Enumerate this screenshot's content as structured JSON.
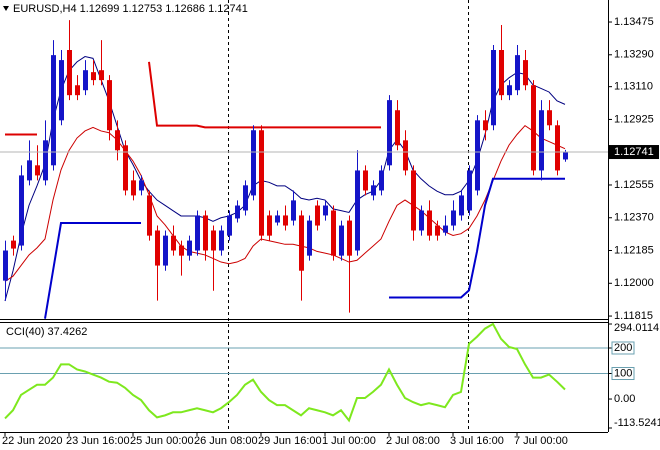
{
  "chart_data": {
    "type": "candlestick",
    "title": "EURUSD,H4 1.12699 1.12753 1.12686 1.12741",
    "categories": [
      "22 Jun 2020",
      null,
      null,
      null,
      null,
      null,
      null,
      null,
      "23 Jun 16:00",
      null,
      null,
      null,
      null,
      null,
      null,
      null,
      "25 Jun 00:00",
      null,
      null,
      null,
      null,
      null,
      null,
      null,
      "26 Jun 08:00",
      null,
      null,
      null,
      null,
      null,
      null,
      null,
      "29 Jun 16:00",
      null,
      null,
      null,
      null,
      null,
      null,
      null,
      "1 Jul 00:00",
      null,
      null,
      null,
      null,
      null,
      null,
      null,
      "2 Jul 08:00",
      null,
      null,
      null,
      null,
      null,
      null,
      null,
      "3 Jul 16:00",
      null,
      null,
      null,
      null,
      null,
      null,
      null,
      "7 Jul 00:00",
      null,
      null,
      null,
      null,
      null,
      null
    ],
    "open": [
      1.12015,
      1.12241,
      1.12213,
      1.12581,
      1.12666,
      1.12581,
      1.12666,
      1.1292,
      1.13317,
      1.13118,
      1.1309,
      1.13192,
      1.13203,
      1.13147,
      1.12864,
      1.12779,
      1.12581,
      1.12524,
      1.12496,
      1.12298,
      1.121,
      1.12269,
      1.12213,
      1.12156,
      1.12185,
      1.12383,
      1.12298,
      1.12185,
      1.12269,
      1.12366,
      1.12411,
      1.12496,
      1.12864,
      1.12383,
      1.12343,
      1.12383,
      1.12354,
      1.12383,
      1.12156,
      1.12439,
      1.12383,
      1.12411,
      1.12156,
      1.12354,
      1.12185,
      1.12637,
      1.12496,
      1.12524,
      1.12666,
      1.12977,
      1.12807,
      1.12637,
      1.12298,
      1.12411,
      1.12326,
      1.12286,
      1.12326,
      1.12383,
      1.12411,
      1.12524,
      1.1292,
      1.12892,
      1.13317,
      1.13062,
      1.1309,
      1.1326,
      1.13118,
      1.12637,
      1.12977,
      1.12892,
      1.12699
    ],
    "high": [
      1.12241,
      1.12269,
      1.12666,
      1.12807,
      1.12779,
      1.1292,
      1.13373,
      1.13317,
      1.13486,
      1.13175,
      1.1326,
      1.1326,
      1.13373,
      1.13175,
      1.1292,
      1.12807,
      1.12637,
      1.12609,
      1.12524,
      1.12326,
      1.12298,
      1.12326,
      1.12241,
      1.12269,
      1.12411,
      1.12411,
      1.12326,
      1.12326,
      1.12411,
      1.12468,
      1.12581,
      1.12892,
      1.12892,
      1.12411,
      1.12411,
      1.12439,
      1.12524,
      1.12411,
      1.12383,
      1.12468,
      1.12468,
      1.12439,
      1.12354,
      1.12383,
      1.12751,
      1.12666,
      1.12581,
      1.12666,
      1.13062,
      1.13034,
      1.12864,
      1.12666,
      1.12439,
      1.12468,
      1.12354,
      1.12383,
      1.12468,
      1.12524,
      1.12666,
      1.12949,
      1.12977,
      1.13345,
      1.13458,
      1.13147,
      1.13345,
      1.13317,
      1.13147,
      1.13034,
      1.13034,
      1.1292,
      1.12753
    ],
    "low": [
      1.11902,
      1.12156,
      1.12185,
      1.12553,
      1.12581,
      1.12553,
      1.12637,
      1.12892,
      1.13034,
      1.13034,
      1.13062,
      1.13118,
      1.13118,
      1.12807,
      1.12694,
      1.12496,
      1.12468,
      1.12496,
      1.12241,
      1.11902,
      1.12071,
      1.12156,
      1.12043,
      1.12128,
      1.12156,
      1.12128,
      1.11958,
      1.12156,
      1.12241,
      1.12343,
      1.12383,
      1.12468,
      1.12241,
      1.12241,
      1.12326,
      1.12298,
      1.12326,
      1.11902,
      1.12128,
      1.12298,
      1.12354,
      1.12128,
      1.12128,
      1.11834,
      1.12156,
      1.12496,
      1.12468,
      1.12496,
      1.12637,
      1.12751,
      1.12609,
      1.12241,
      1.12269,
      1.12241,
      1.12241,
      1.12269,
      1.12298,
      1.12354,
      1.12383,
      1.12496,
      1.12807,
      1.12864,
      1.13034,
      1.13034,
      1.13062,
      1.1309,
      1.12609,
      1.12581,
      1.12864,
      1.12609,
      1.12686
    ],
    "close": [
      1.12185,
      1.12196,
      1.12609,
      1.12694,
      1.12609,
      1.12807,
      1.13288,
      1.1326,
      1.13062,
      1.13062,
      1.13203,
      1.13147,
      1.13147,
      1.12864,
      1.12751,
      1.12524,
      1.12496,
      1.12581,
      1.12269,
      1.121,
      1.12269,
      1.12185,
      1.12156,
      1.12241,
      1.12383,
      1.12185,
      1.12185,
      1.12298,
      1.12383,
      1.12439,
      1.12553,
      1.12864,
      1.12269,
      1.12269,
      1.12383,
      1.12326,
      1.12468,
      1.12071,
      1.12354,
      1.12326,
      1.12439,
      1.12156,
      1.12326,
      1.12156,
      1.12637,
      1.12524,
      1.12553,
      1.12637,
      1.13034,
      1.12779,
      1.12637,
      1.12298,
      1.12411,
      1.12269,
      1.12269,
      1.12326,
      1.12411,
      1.12496,
      1.12637,
      1.1292,
      1.12864,
      1.13317,
      1.13062,
      1.13118,
      1.13288,
      1.13118,
      1.12637,
      1.12977,
      1.12892,
      1.12637,
      1.12741
    ],
    "up_color": "#1414c8",
    "down_color": "#e00000",
    "series": [
      {
        "color": "#000080",
        "values": [
          1.119,
          1.1207,
          1.1227,
          1.1244,
          1.1255,
          1.1267,
          1.1292,
          1.1309,
          1.132,
          1.1325,
          1.1328,
          1.1327,
          1.1315,
          1.1303,
          1.1289,
          1.1275,
          1.1267,
          1.1258,
          1.1252,
          1.1247,
          1.1244,
          1.1241,
          1.1238,
          1.1238,
          1.1238,
          1.1237,
          1.1235,
          1.1237,
          1.1238,
          1.124,
          1.1244,
          1.1255,
          1.1258,
          1.1257,
          1.1255,
          1.1255,
          1.1252,
          1.1248,
          1.1247,
          1.1248,
          1.1247,
          1.1242,
          1.1241,
          1.124,
          1.1247,
          1.125,
          1.1252,
          1.1258,
          1.1275,
          1.1281,
          1.1275,
          1.1264,
          1.1259,
          1.1255,
          1.1252,
          1.125,
          1.125,
          1.1252,
          1.1258,
          1.1269,
          1.1284,
          1.1303,
          1.1312,
          1.1316,
          1.1319,
          1.1318,
          1.1312,
          1.131,
          1.1308,
          1.1303,
          1.1301
        ]
      },
      {
        "color": "#cc0000",
        "values": [
          1.1201,
          1.1204,
          1.121,
          1.1216,
          1.122,
          1.1225,
          1.1247,
          1.1264,
          1.1275,
          1.1282,
          1.1286,
          1.1288,
          1.1286,
          1.1285,
          1.1281,
          1.1275,
          1.1269,
          1.1261,
          1.125,
          1.1238,
          1.1233,
          1.1227,
          1.1221,
          1.1218,
          1.1217,
          1.1216,
          1.1214,
          1.1212,
          1.1211,
          1.1212,
          1.1214,
          1.1221,
          1.1225,
          1.1224,
          1.1223,
          1.1222,
          1.1222,
          1.1221,
          1.122,
          1.1218,
          1.1217,
          1.1216,
          1.1214,
          1.1212,
          1.1213,
          1.1217,
          1.1221,
          1.1225,
          1.1235,
          1.1244,
          1.1247,
          1.1244,
          1.1241,
          1.1237,
          1.1233,
          1.1229,
          1.1227,
          1.1228,
          1.1231,
          1.1238,
          1.1247,
          1.1258,
          1.1269,
          1.1278,
          1.1284,
          1.1289,
          1.1286,
          1.1282,
          1.128,
          1.1278,
          1.1276
        ]
      },
      {
        "color": "#dd0000",
        "values": [
          1.1284,
          1.1284,
          1.1284,
          1.1284,
          1.1284,
          null,
          null,
          null,
          null,
          null,
          null,
          null,
          null,
          null,
          null,
          null,
          null,
          null,
          1.1325,
          1.1289,
          1.1289,
          1.1289,
          1.1289,
          1.1289,
          1.1289,
          1.1288,
          1.1288,
          1.1288,
          1.1288,
          1.1288,
          1.1288,
          1.1288,
          1.1288,
          1.1288,
          1.1288,
          1.1288,
          1.1288,
          1.1288,
          1.1288,
          1.1288,
          1.1288,
          1.1288,
          1.1288,
          1.1288,
          1.1288,
          1.1288,
          1.1288,
          1.1288,
          null,
          null,
          null,
          null,
          null,
          null,
          null,
          null,
          null,
          null,
          null,
          null,
          null,
          null,
          null,
          null,
          null,
          null,
          null,
          null,
          null,
          null,
          null
        ]
      },
      {
        "color": "#0000cc",
        "values": [
          null,
          null,
          null,
          null,
          null,
          1.118,
          1.1207,
          1.1234,
          1.1234,
          1.1234,
          1.1234,
          1.1234,
          1.1234,
          1.1234,
          1.1234,
          1.1234,
          1.1234,
          1.1234,
          null,
          null,
          null,
          null,
          null,
          null,
          null,
          null,
          null,
          null,
          null,
          null,
          null,
          null,
          null,
          null,
          null,
          null,
          null,
          null,
          null,
          null,
          null,
          null,
          null,
          null,
          null,
          null,
          null,
          null,
          1.1192,
          1.1192,
          1.1192,
          1.1192,
          1.1192,
          1.1192,
          1.1192,
          1.1192,
          1.1192,
          1.1192,
          1.1196,
          1.1218,
          1.1244,
          1.1259,
          1.1259,
          1.1259,
          1.1259,
          1.1259,
          1.1259,
          1.1259,
          1.1259,
          1.1259,
          1.1259
        ]
      }
    ],
    "ylim": [
      1.11804,
      1.13588
    ],
    "yticks": [
      1.13475,
      {
        "value": 1.1329,
        "label": "1.13290"
      },
      {
        "value": 1.1311,
        "label": "1.13110"
      },
      1.12925,
      1.12555,
      {
        "value": 1.1237,
        "label": "1.12370"
      },
      1.12185,
      {
        "value": 1.12,
        "label": "1.12000"
      },
      1.11815
    ],
    "cci": {
      "type": "line",
      "label": "CCI(40) 37.4262",
      "color": "#7ee81e",
      "level_color": "#6aa0b0",
      "values": [
        -76,
        -44,
        16,
        36,
        56,
        56,
        84,
        136,
        136,
        116,
        108,
        96,
        84,
        68,
        64,
        44,
        16,
        -4,
        -44,
        -72,
        -64,
        -52,
        -52,
        -44,
        -36,
        -44,
        -52,
        -36,
        -12,
        16,
        56,
        76,
        28,
        -4,
        -24,
        -24,
        -44,
        -64,
        -36,
        -44,
        -52,
        -64,
        -44,
        -84,
        4,
        4,
        28,
        56,
        116,
        56,
        4,
        -12,
        -24,
        -16,
        -24,
        -32,
        16,
        28,
        216,
        244,
        276,
        294.0114,
        236,
        204,
        196,
        136,
        84,
        84,
        96,
        68,
        37.4262
      ],
      "ylim": [
        -113.5241,
        294.0114
      ],
      "yticks": [
        294.0114,
        200,
        100,
        {
          "value": 0,
          "label": "0.00"
        },
        -113.5241
      ],
      "levels": [
        200,
        100
      ]
    }
  }
}
